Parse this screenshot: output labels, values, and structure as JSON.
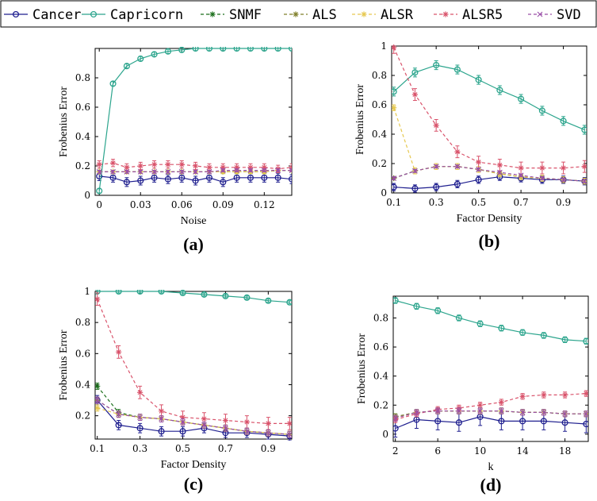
{
  "legend": [
    {
      "name": "Cancer",
      "color": "#1f1f8f",
      "marker": "circle",
      "dash": "solid"
    },
    {
      "name": "Capricorn",
      "color": "#2ca58d",
      "marker": "circle",
      "dash": "solid"
    },
    {
      "name": "SNMF",
      "color": "#1a6e1a",
      "marker": "star",
      "dash": "dash"
    },
    {
      "name": "ALS",
      "color": "#7f7f2a",
      "marker": "star",
      "dash": "dash"
    },
    {
      "name": "ALSR",
      "color": "#e6c84f",
      "marker": "star",
      "dash": "dash"
    },
    {
      "name": "ALSR5",
      "color": "#d9536b",
      "marker": "star",
      "dash": "dash"
    },
    {
      "name": "SVD",
      "color": "#9a4fa8",
      "marker": "cross",
      "dash": "dash"
    }
  ],
  "chart_data": [
    {
      "type": "line",
      "caption": "(a)",
      "xlabel": "Noise",
      "ylabel": "Frobenius Error",
      "xlim": [
        -0.003,
        0.14
      ],
      "ylim": [
        0,
        1
      ],
      "xticks": [
        0,
        0.03,
        0.06,
        0.09,
        0.12
      ],
      "xtick_labels": [
        "0",
        "0.03",
        "0.06",
        "0.09",
        "0.12"
      ],
      "yticks": [
        0,
        0.2,
        0.4,
        0.6,
        0.8
      ],
      "ytick_labels": [
        "0",
        "0.2",
        "0.4",
        "0.6",
        "0.8"
      ],
      "x": [
        0,
        0.01,
        0.02,
        0.03,
        0.04,
        0.05,
        0.06,
        0.07,
        0.08,
        0.09,
        0.1,
        0.11,
        0.12,
        0.13,
        0.14
      ],
      "series": [
        {
          "name": "Cancer",
          "values": [
            0.13,
            0.12,
            0.09,
            0.1,
            0.12,
            0.11,
            0.12,
            0.1,
            0.12,
            0.09,
            0.12,
            0.12,
            0.12,
            0.12,
            0.11
          ],
          "err": 0.03
        },
        {
          "name": "Capricorn",
          "values": [
            0.03,
            0.76,
            0.88,
            0.93,
            0.96,
            0.98,
            0.99,
            1.0,
            1.0,
            1.0,
            1.0,
            1.0,
            1.0,
            1.0,
            1.0
          ],
          "err": 0.015
        },
        {
          "name": "SNMF",
          "values": [
            0.16,
            0.16,
            0.16,
            0.16,
            0.16,
            0.16,
            0.16,
            0.16,
            0.16,
            0.16,
            0.16,
            0.16,
            0.16,
            0.17,
            0.17
          ],
          "err": 0.01
        },
        {
          "name": "ALS",
          "values": [
            0.16,
            0.16,
            0.16,
            0.16,
            0.16,
            0.16,
            0.16,
            0.16,
            0.16,
            0.16,
            0.16,
            0.16,
            0.16,
            0.17,
            0.17
          ],
          "err": 0.01
        },
        {
          "name": "ALSR",
          "values": [
            0.16,
            0.16,
            0.16,
            0.16,
            0.16,
            0.16,
            0.16,
            0.16,
            0.16,
            0.16,
            0.16,
            0.16,
            0.16,
            0.17,
            0.17
          ],
          "err": 0.01
        },
        {
          "name": "ALSR5",
          "values": [
            0.21,
            0.22,
            0.19,
            0.2,
            0.21,
            0.21,
            0.21,
            0.2,
            0.19,
            0.19,
            0.19,
            0.19,
            0.19,
            0.18,
            0.19
          ],
          "err": 0.025
        },
        {
          "name": "SVD",
          "values": [
            0.16,
            0.16,
            0.16,
            0.16,
            0.16,
            0.16,
            0.16,
            0.16,
            0.16,
            0.17,
            0.17,
            0.17,
            0.17,
            0.17,
            0.17
          ],
          "err": 0.01
        }
      ]
    },
    {
      "type": "line",
      "caption": "(b)",
      "xlabel": "Factor Density",
      "ylabel": "Frobenius Error",
      "xlim": [
        0.09,
        1.01
      ],
      "ylim": [
        0,
        1
      ],
      "xticks": [
        0.1,
        0.3,
        0.5,
        0.7,
        0.9
      ],
      "xtick_labels": [
        "0.1",
        "0.3",
        "0.5",
        "0.7",
        "0.9"
      ],
      "yticks": [
        0,
        0.2,
        0.4,
        0.6,
        0.8,
        1
      ],
      "ytick_labels": [
        "0",
        "0.2",
        "0.4",
        "0.6",
        "0.8",
        "1"
      ],
      "x": [
        0.1,
        0.2,
        0.3,
        0.4,
        0.5,
        0.6,
        0.7,
        0.8,
        0.9,
        1.0
      ],
      "series": [
        {
          "name": "Cancer",
          "values": [
            0.04,
            0.03,
            0.04,
            0.06,
            0.09,
            0.11,
            0.1,
            0.09,
            0.09,
            0.08
          ],
          "err": 0.025
        },
        {
          "name": "Capricorn",
          "values": [
            0.69,
            0.82,
            0.87,
            0.84,
            0.77,
            0.7,
            0.64,
            0.56,
            0.49,
            0.43
          ],
          "err": 0.03
        },
        {
          "name": "SNMF",
          "values": [
            0.1,
            0.15,
            0.18,
            0.18,
            0.16,
            0.13,
            0.11,
            0.1,
            0.09,
            0.08
          ],
          "err": 0.01
        },
        {
          "name": "ALS",
          "values": [
            0.1,
            0.15,
            0.18,
            0.18,
            0.16,
            0.13,
            0.11,
            0.1,
            0.09,
            0.08
          ],
          "err": 0.01
        },
        {
          "name": "ALSR",
          "values": [
            0.58,
            0.15,
            0.18,
            0.18,
            0.16,
            0.13,
            0.11,
            0.1,
            0.09,
            0.08
          ],
          "err": 0.02
        },
        {
          "name": "ALSR5",
          "values": [
            0.99,
            0.67,
            0.46,
            0.28,
            0.21,
            0.19,
            0.17,
            0.17,
            0.17,
            0.18
          ],
          "err": 0.04
        },
        {
          "name": "SVD",
          "values": [
            0.1,
            0.15,
            0.18,
            0.18,
            0.16,
            0.14,
            0.12,
            0.1,
            0.09,
            0.08
          ],
          "err": 0.01
        }
      ]
    },
    {
      "type": "line",
      "caption": "(c)",
      "xlabel": "Factor Density",
      "ylabel": "Frobenius Error",
      "xlim": [
        0.09,
        1.01
      ],
      "ylim": [
        0.05,
        1
      ],
      "xticks": [
        0.1,
        0.3,
        0.5,
        0.7,
        0.9
      ],
      "xtick_labels": [
        "0.1",
        "0.3",
        "0.5",
        "0.7",
        "0.9"
      ],
      "yticks": [
        0.2,
        0.4,
        0.6,
        0.8,
        1
      ],
      "ytick_labels": [
        "0.2",
        "0.4",
        "0.6",
        "0.8",
        "1"
      ],
      "x": [
        0.1,
        0.2,
        0.3,
        0.4,
        0.5,
        0.6,
        0.7,
        0.8,
        0.9,
        1.0
      ],
      "series": [
        {
          "name": "Cancer",
          "values": [
            0.3,
            0.14,
            0.12,
            0.1,
            0.1,
            0.12,
            0.09,
            0.09,
            0.08,
            0.07
          ],
          "err": 0.03
        },
        {
          "name": "Capricorn",
          "values": [
            1.0,
            1.0,
            1.0,
            1.0,
            0.99,
            0.98,
            0.97,
            0.96,
            0.94,
            0.93
          ],
          "err": 0.01
        },
        {
          "name": "SNMF",
          "values": [
            0.39,
            0.22,
            0.19,
            0.18,
            0.16,
            0.14,
            0.12,
            0.1,
            0.09,
            0.08
          ],
          "err": 0.02
        },
        {
          "name": "ALS",
          "values": [
            0.3,
            0.21,
            0.19,
            0.18,
            0.16,
            0.14,
            0.12,
            0.1,
            0.09,
            0.08
          ],
          "err": 0.02
        },
        {
          "name": "ALSR",
          "values": [
            0.25,
            0.21,
            0.19,
            0.18,
            0.16,
            0.14,
            0.12,
            0.1,
            0.09,
            0.08
          ],
          "err": 0.02
        },
        {
          "name": "ALSR5",
          "values": [
            0.95,
            0.61,
            0.35,
            0.23,
            0.19,
            0.18,
            0.17,
            0.16,
            0.15,
            0.15
          ],
          "err": 0.04
        },
        {
          "name": "SVD",
          "values": [
            0.3,
            0.21,
            0.19,
            0.18,
            0.16,
            0.14,
            0.12,
            0.1,
            0.09,
            0.08
          ],
          "err": 0.02
        }
      ]
    },
    {
      "type": "line",
      "caption": "(d)",
      "xlabel": "k",
      "ylabel": "Frobenius Error",
      "xlim": [
        1.8,
        20.2
      ],
      "ylim": [
        -0.05,
        0.95
      ],
      "xticks": [
        2,
        6,
        10,
        14,
        18
      ],
      "xtick_labels": [
        "2",
        "6",
        "10",
        "14",
        "18"
      ],
      "yticks": [
        0,
        0.2,
        0.4,
        0.6,
        0.8
      ],
      "ytick_labels": [
        "0",
        "0.2",
        "0.4",
        "0.6",
        "0.8"
      ],
      "x": [
        2,
        4,
        6,
        8,
        10,
        12,
        14,
        16,
        18,
        20
      ],
      "series": [
        {
          "name": "Cancer",
          "values": [
            0.04,
            0.1,
            0.09,
            0.08,
            0.12,
            0.09,
            0.09,
            0.09,
            0.08,
            0.07
          ],
          "err": 0.06
        },
        {
          "name": "Capricorn",
          "values": [
            0.92,
            0.88,
            0.85,
            0.8,
            0.76,
            0.73,
            0.7,
            0.68,
            0.65,
            0.64
          ],
          "err": 0.02
        },
        {
          "name": "SNMF",
          "values": [
            0.12,
            0.15,
            0.16,
            0.16,
            0.16,
            0.16,
            0.15,
            0.15,
            0.14,
            0.14
          ],
          "err": 0.02
        },
        {
          "name": "ALS",
          "values": [
            0.12,
            0.15,
            0.16,
            0.16,
            0.16,
            0.16,
            0.15,
            0.15,
            0.14,
            0.14
          ],
          "err": 0.02
        },
        {
          "name": "ALSR",
          "values": [
            0.11,
            0.15,
            0.16,
            0.16,
            0.16,
            0.16,
            0.15,
            0.15,
            0.14,
            0.14
          ],
          "err": 0.02
        },
        {
          "name": "ALSR5",
          "values": [
            0.1,
            0.14,
            0.17,
            0.18,
            0.2,
            0.22,
            0.26,
            0.27,
            0.27,
            0.28
          ],
          "err": 0.02
        },
        {
          "name": "SVD",
          "values": [
            0.11,
            0.15,
            0.16,
            0.16,
            0.16,
            0.16,
            0.15,
            0.15,
            0.14,
            0.14
          ],
          "err": 0.02
        }
      ]
    }
  ]
}
